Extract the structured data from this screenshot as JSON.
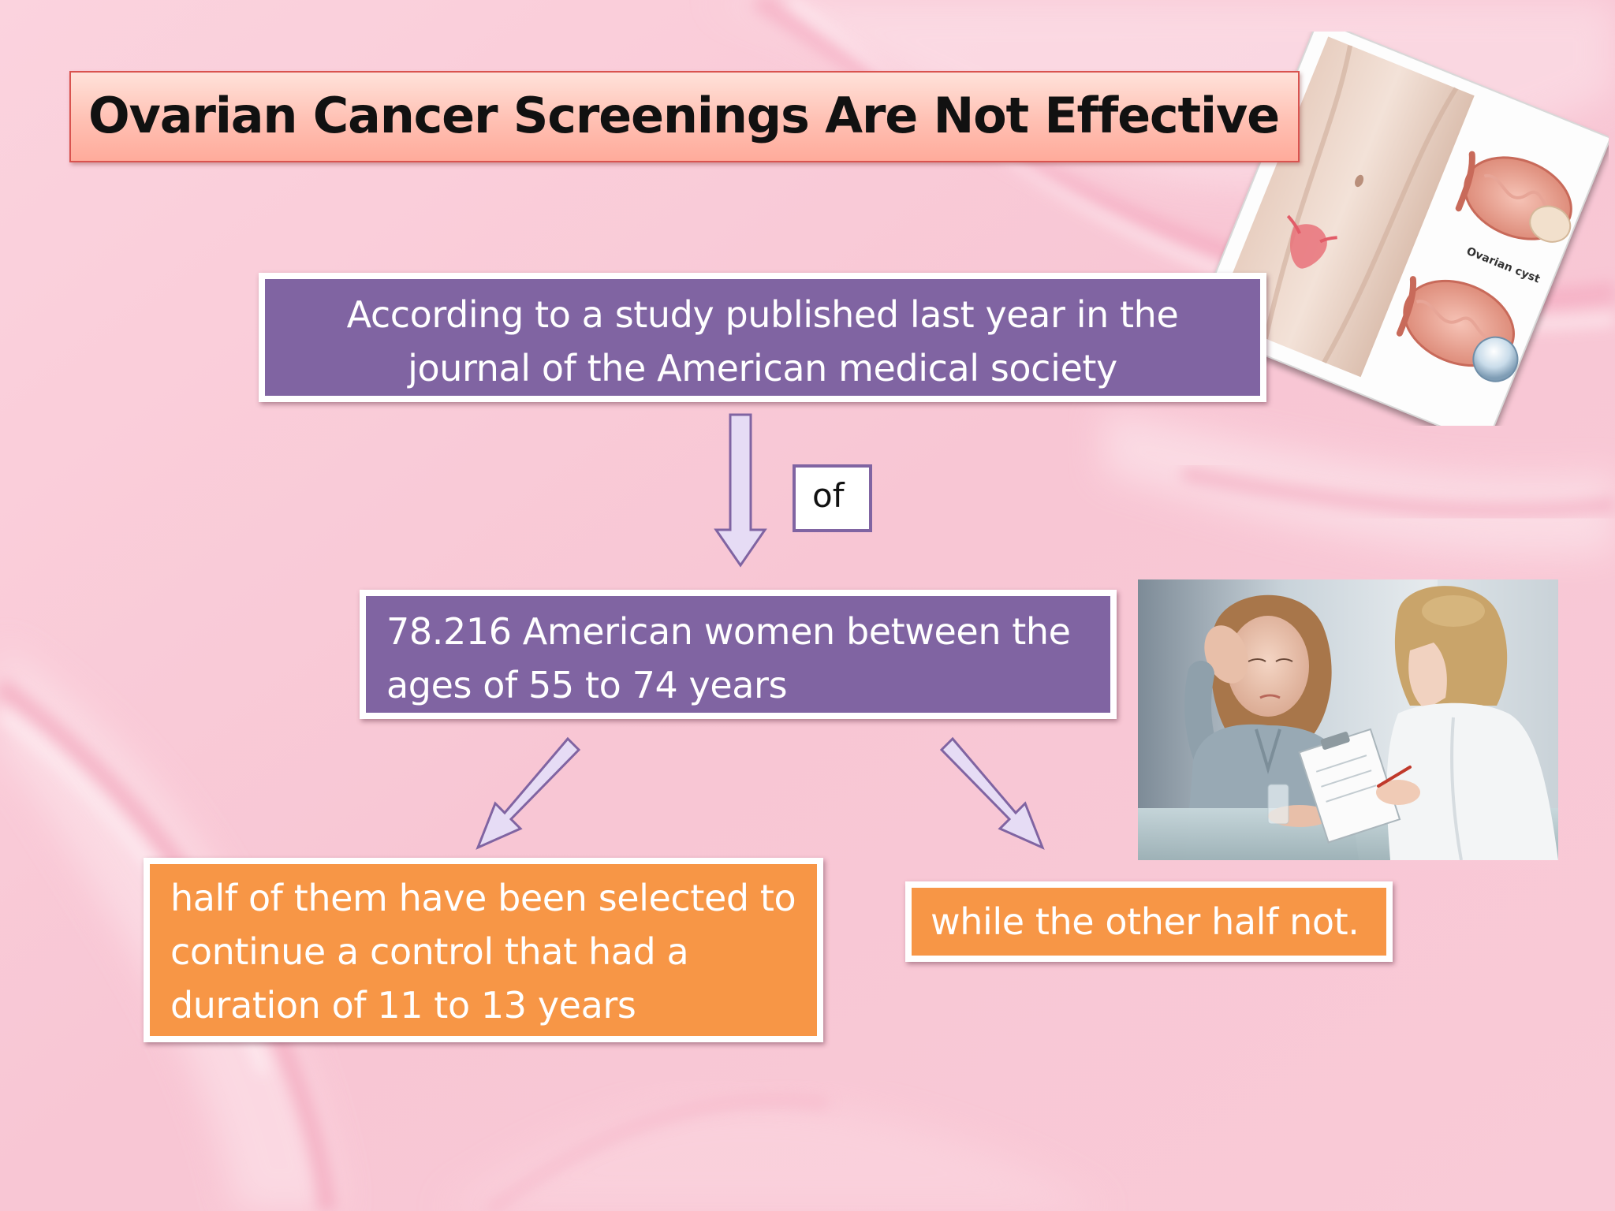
{
  "title": "Ovarian Cancer Screenings Are Not Effective",
  "flow": {
    "study": {
      "line1": "According to a study published last year in the",
      "line2": "journal of the American medical society"
    },
    "connector_label": "of",
    "women": {
      "line1": "78.216 American women between the",
      "line2": "ages of 55 to 74 years"
    },
    "selected": {
      "line1": "half of them have been selected to",
      "line2": "continue a control that had a",
      "line3": "duration of 11 to 13 years"
    },
    "other": {
      "text": "while the other half not."
    }
  },
  "illustration": {
    "caption": "Ovarian cyst"
  },
  "colors": {
    "background": "#f9cbd8",
    "title_border": "#d9534f",
    "purple_box": "#8064a2",
    "orange_box": "#f79646",
    "arrow_fill": "#e6dcf5",
    "arrow_stroke": "#8064a2"
  }
}
